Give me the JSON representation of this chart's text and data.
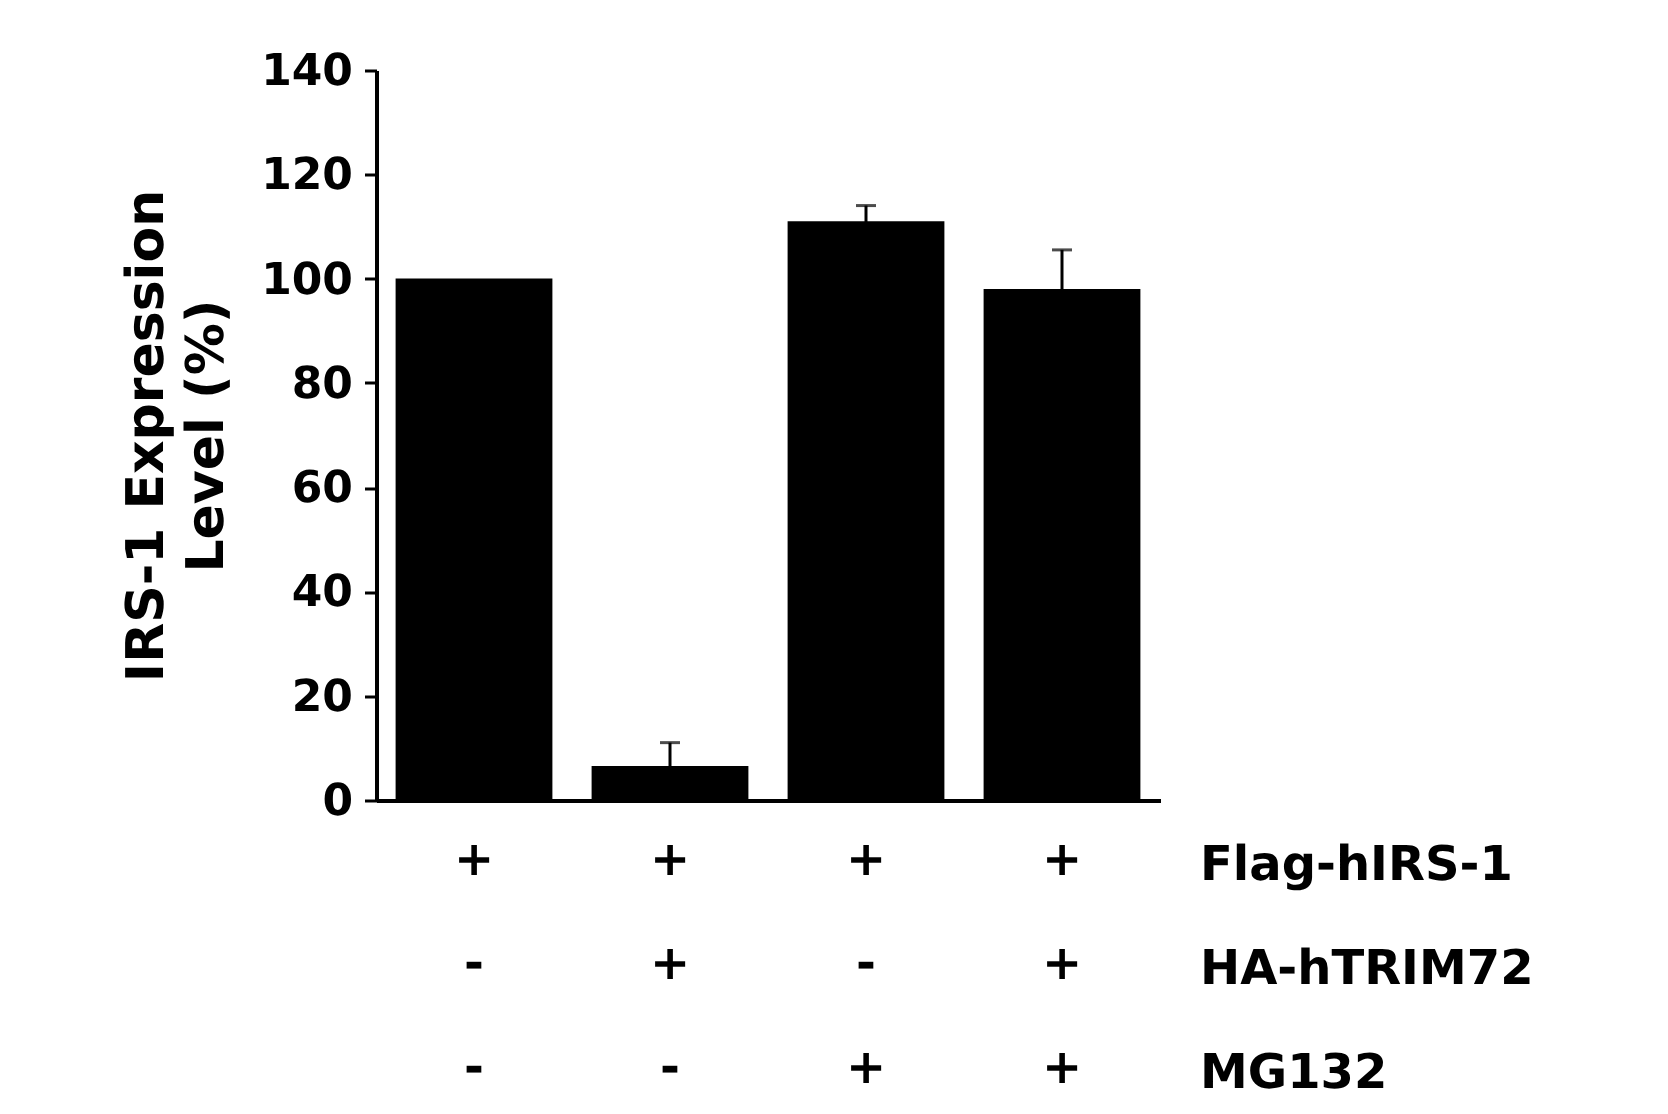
{
  "chart_data": {
    "type": "bar",
    "ylabel": "IRS-1 Expression Level (%)",
    "categories": [
      "+\n-\n-",
      "+\n+\n-",
      "+\n-\n+",
      "+\n+\n+"
    ],
    "values": [
      100,
      6.5,
      111,
      98
    ],
    "errors": [
      null,
      4.5,
      3,
      7.5
    ],
    "color": "#000000",
    "ylim": [
      0,
      140
    ],
    "yticks": [
      0,
      20,
      40,
      60,
      80,
      100,
      120,
      140
    ],
    "annotations": [
      "Flag-hIRS-1",
      "HA-hTRIM72",
      "MG132"
    ]
  }
}
